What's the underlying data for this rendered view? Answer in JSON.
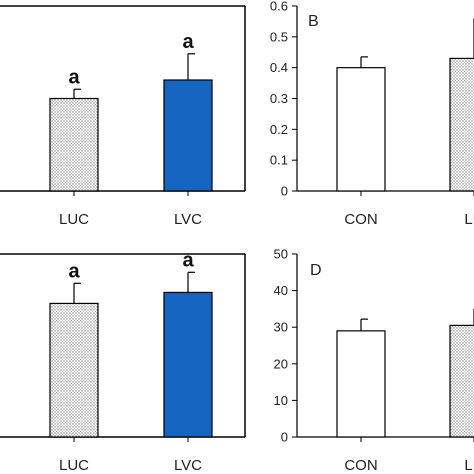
{
  "chart_data": [
    {
      "type": "bar",
      "panel_label": "",
      "categories": [
        "LUC",
        "LVC"
      ],
      "values": [
        0.3,
        0.36
      ],
      "errors": [
        0.03,
        0.085
      ],
      "annotations": [
        "a",
        "a"
      ],
      "fills": [
        "dotted",
        "#1565c0"
      ],
      "ylim": [
        0,
        0.6
      ],
      "yticks": [],
      "show_ytick_labels": false
    },
    {
      "type": "bar",
      "panel_label": "B",
      "categories": [
        "CON",
        "LU"
      ],
      "values": [
        0.4,
        0.43
      ],
      "errors": [
        0.035,
        0.13
      ],
      "annotations": [
        "",
        ""
      ],
      "fills": [
        "#ffffff",
        "dotted"
      ],
      "ylim": [
        0,
        0.6
      ],
      "yticks": [
        "0",
        "0.1",
        "0.2",
        "0.3",
        "0.4",
        "0.5",
        "0.6"
      ],
      "show_ytick_labels": true
    },
    {
      "type": "bar",
      "panel_label": "",
      "categories": [
        "LUC",
        "LVC"
      ],
      "values": [
        36.5,
        39.5
      ],
      "errors": [
        5.5,
        5.5
      ],
      "annotations": [
        "a",
        "a"
      ],
      "fills": [
        "dotted",
        "#1565c0"
      ],
      "ylim": [
        0,
        50
      ],
      "yticks": [],
      "show_ytick_labels": false
    },
    {
      "type": "bar",
      "panel_label": "D",
      "categories": [
        "CON",
        "LU"
      ],
      "values": [
        29,
        30.5
      ],
      "errors": [
        3.2,
        4.5
      ],
      "annotations": [
        "",
        ""
      ],
      "fills": [
        "#ffffff",
        "dotted"
      ],
      "ylim": [
        0,
        50
      ],
      "yticks": [
        "0",
        "10",
        "20",
        "30",
        "40",
        "50"
      ],
      "show_ytick_labels": true
    }
  ]
}
